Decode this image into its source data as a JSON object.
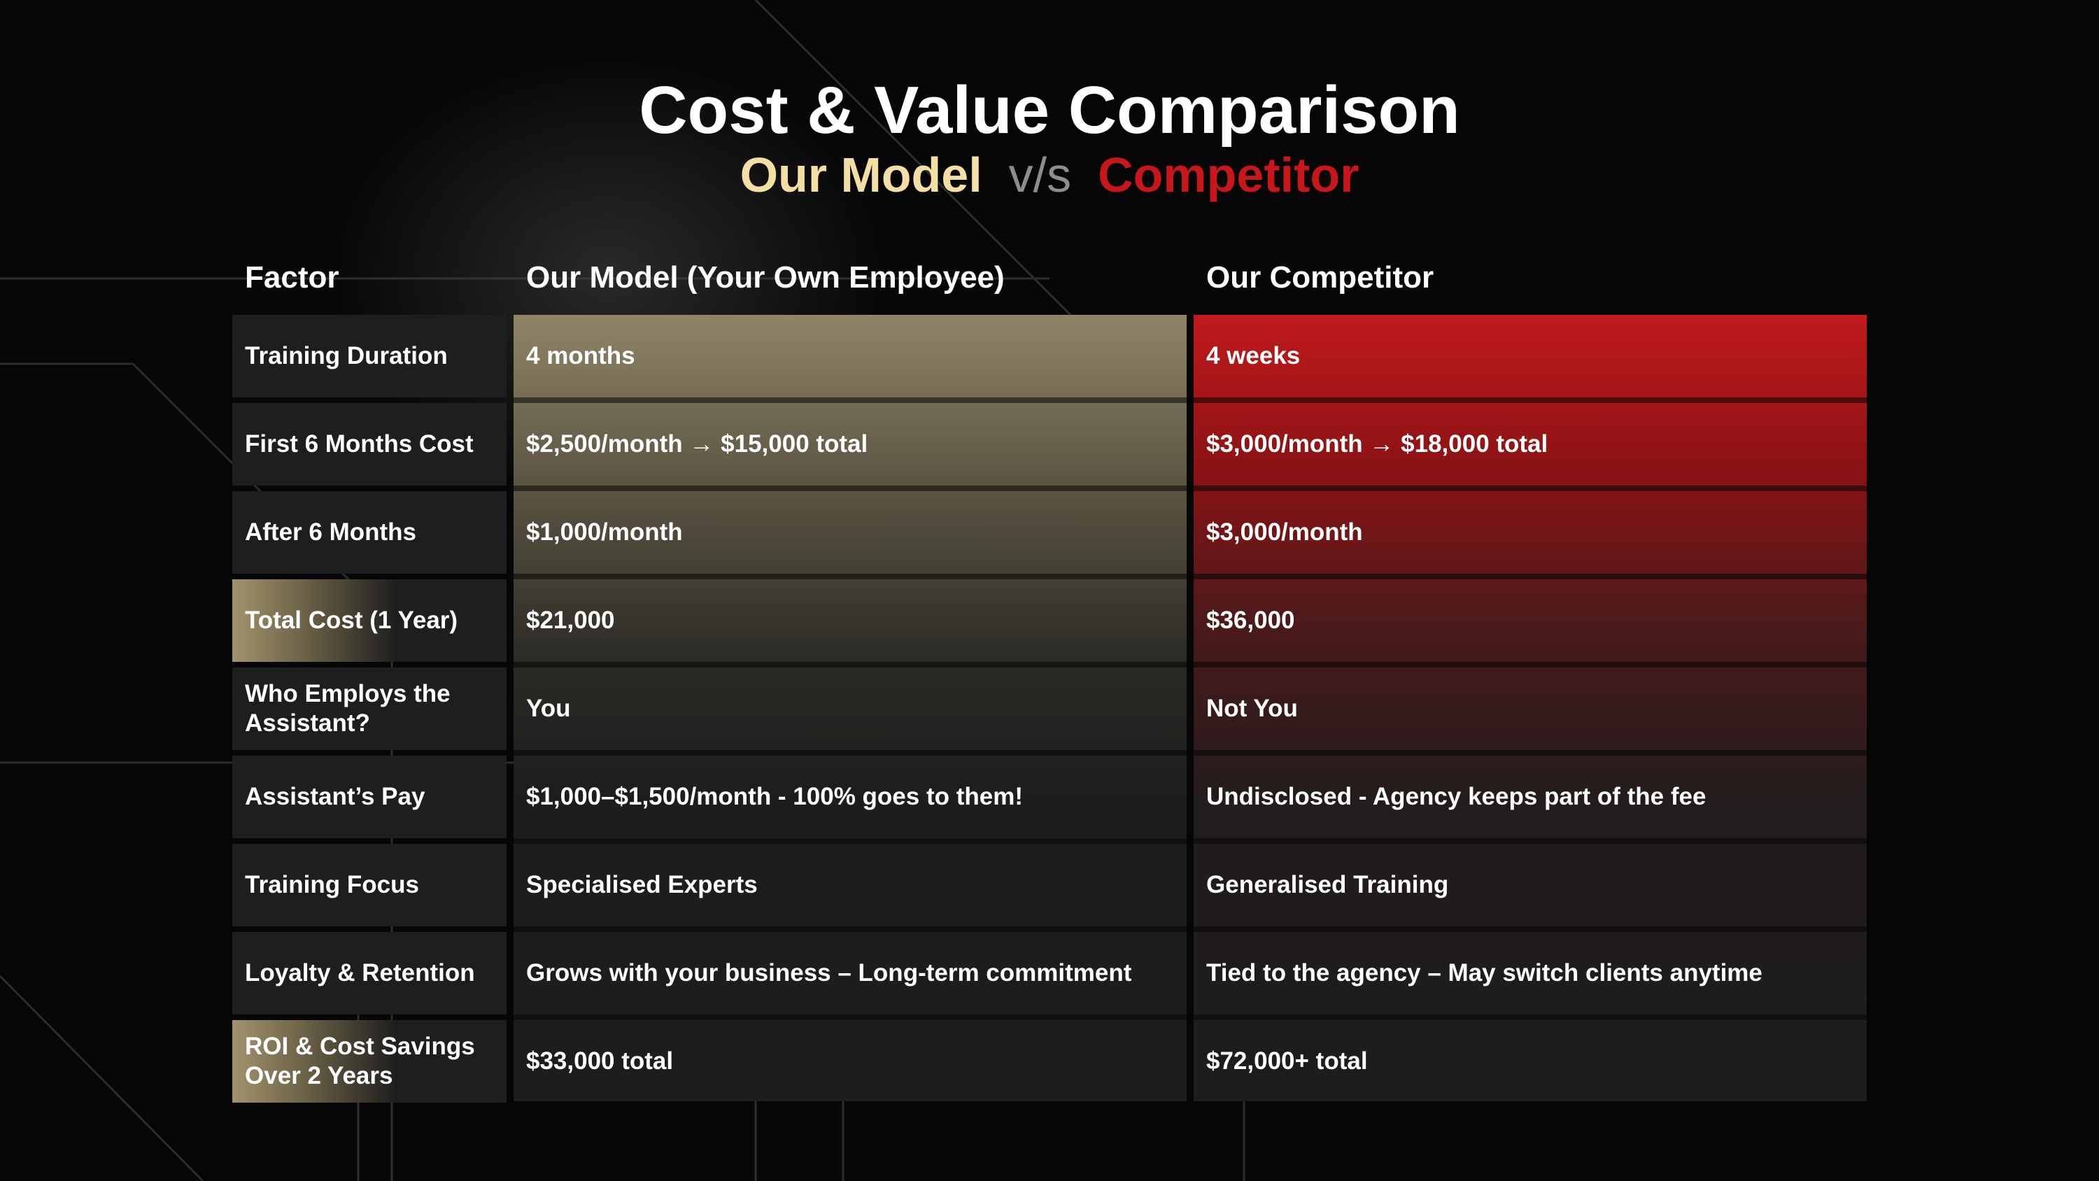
{
  "title": "Cost & Value Comparison",
  "subtitle": {
    "ours": "Our Model",
    "vs": "v/s",
    "competitor": "Competitor"
  },
  "colors": {
    "gold": "#f3dfa4",
    "red": "#c8161b",
    "background": "#060606"
  },
  "table": {
    "headers": [
      "Factor",
      "Our Model (Your Own Employee)",
      "Our Competitor"
    ],
    "rows": [
      {
        "factor": "Training Duration",
        "ours": "4 months",
        "competitor": "4 weeks"
      },
      {
        "factor": "First 6 Months Cost",
        "ours": "$2,500/month → $15,000 total",
        "competitor": "$3,000/month → $18,000 total"
      },
      {
        "factor": "After 6 Months",
        "ours": "$1,000/month",
        "competitor": "$3,000/month"
      },
      {
        "factor": "Total Cost (1 Year)",
        "ours": "$21,000",
        "competitor": "$36,000"
      },
      {
        "factor": "Who Employs the Assistant?",
        "ours": "You",
        "competitor": "Not You"
      },
      {
        "factor": "Assistant’s Pay",
        "ours": "$1,000–$1,500/month - 100% goes to them!",
        "competitor": "Undisclosed - Agency keeps part of the fee"
      },
      {
        "factor": "Training Focus",
        "ours": "Specialised Experts",
        "competitor": "Generalised Training"
      },
      {
        "factor": "Loyalty & Retention",
        "ours": "Grows with your business – Long-term commitment",
        "competitor": "Tied to the agency – May switch clients anytime"
      },
      {
        "factor": "ROI & Cost Savings Over 2 Years",
        "ours": "$33,000 total",
        "competitor": "$72,000+ total"
      }
    ]
  }
}
